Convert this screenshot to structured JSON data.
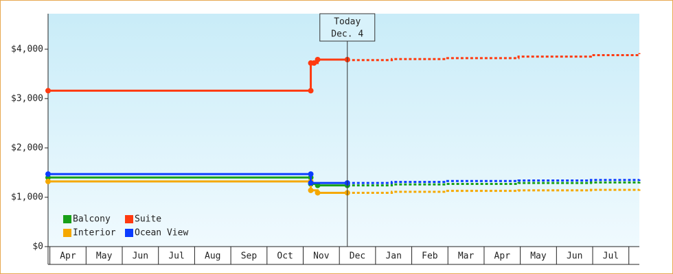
{
  "chart_data": {
    "type": "step-line",
    "xlim": [
      0,
      16.34
    ],
    "xticks": [
      {
        "value": 0.55,
        "label": "Apr"
      },
      {
        "value": 1.55,
        "label": "May"
      },
      {
        "value": 2.55,
        "label": "Jun"
      },
      {
        "value": 3.55,
        "label": "Jul"
      },
      {
        "value": 4.55,
        "label": "Aug"
      },
      {
        "value": 5.55,
        "label": "Sep"
      },
      {
        "value": 6.55,
        "label": "Oct"
      },
      {
        "value": 7.55,
        "label": "Nov"
      },
      {
        "value": 8.55,
        "label": "Dec"
      },
      {
        "value": 9.55,
        "label": "Jan"
      },
      {
        "value": 10.55,
        "label": "Feb"
      },
      {
        "value": 11.55,
        "label": "Mar"
      },
      {
        "value": 12.55,
        "label": "Apr"
      },
      {
        "value": 13.55,
        "label": "May"
      },
      {
        "value": 14.55,
        "label": "Jun"
      },
      {
        "value": 15.55,
        "label": "Jul"
      }
    ],
    "ylim": [
      0,
      4720
    ],
    "yticks": [
      {
        "value": 0,
        "label": "$0"
      },
      {
        "value": 1000,
        "label": "$1,000"
      },
      {
        "value": 2000,
        "label": "$2,000"
      },
      {
        "value": 3000,
        "label": "$3,000"
      },
      {
        "value": 4000,
        "label": "$4,000"
      }
    ],
    "today": {
      "x": 8.27,
      "label": "Today",
      "date": "Dec. 4"
    },
    "legend": "bottom-left",
    "series": [
      {
        "name": "Balcony",
        "color": "#18a018",
        "x": [
          0,
          7.26,
          7.26,
          7.45,
          8.27
        ],
        "values": [
          1400,
          1400,
          1270,
          1240,
          1240
        ],
        "forecast_x": [
          8.27,
          9.5,
          11,
          13,
          15,
          16.34
        ],
        "forecast_values": [
          1240,
          1260,
          1270,
          1290,
          1300,
          1310
        ]
      },
      {
        "name": "Suite",
        "color": "#ff3a10",
        "x": [
          0,
          7.26,
          7.26,
          7.35,
          7.45,
          8.27
        ],
        "values": [
          3160,
          3160,
          3720,
          3720,
          3790,
          3790
        ],
        "forecast_x": [
          8.27,
          9.5,
          11,
          13,
          15,
          16.34
        ],
        "forecast_values": [
          3780,
          3800,
          3820,
          3850,
          3880,
          3920
        ]
      },
      {
        "name": "Interior",
        "color": "#f5a800",
        "x": [
          0,
          7.26,
          7.26,
          7.45,
          8.27
        ],
        "values": [
          1320,
          1320,
          1140,
          1090,
          1090
        ],
        "forecast_x": [
          8.27,
          9.5,
          11,
          13,
          15,
          16.34
        ],
        "forecast_values": [
          1090,
          1110,
          1130,
          1140,
          1150,
          1160
        ]
      },
      {
        "name": "Ocean View",
        "color": "#0a3cff",
        "x": [
          0,
          7.26,
          7.26,
          8.27
        ],
        "values": [
          1470,
          1470,
          1290,
          1290
        ],
        "forecast_x": [
          8.27,
          9.5,
          11,
          13,
          15,
          16.34
        ],
        "forecast_values": [
          1290,
          1310,
          1330,
          1340,
          1350,
          1360
        ]
      }
    ]
  }
}
